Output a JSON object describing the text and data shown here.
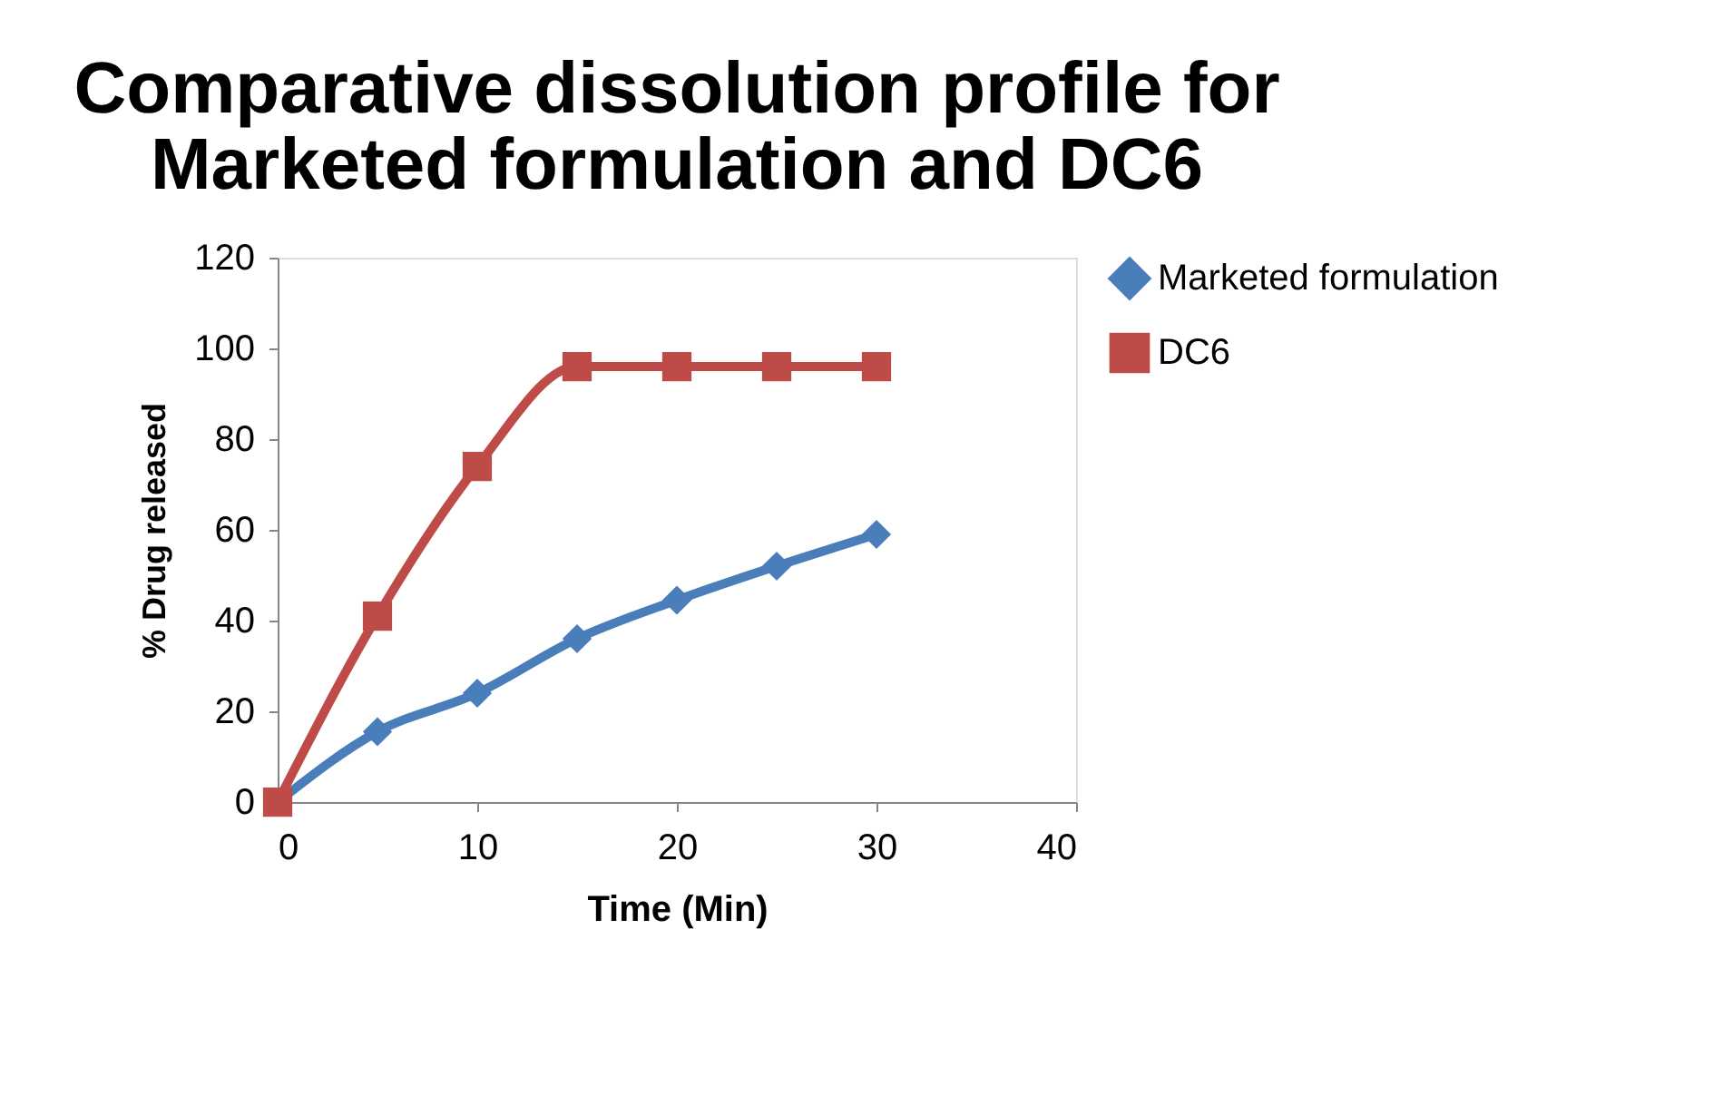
{
  "chart_data": {
    "type": "line",
    "title": [
      "Comparative dissolution profile for",
      "Marketed formulation and DC6"
    ],
    "xlabel": "Time (Min)",
    "ylabel": "% Drug released",
    "x": [
      0,
      5,
      10,
      15,
      20,
      25,
      30
    ],
    "series": [
      {
        "name": "Marketed formulation",
        "color": "#4a7ebb",
        "marker": "diamond",
        "values": [
          0,
          15.5,
          24,
          36,
          44.5,
          52,
          59
        ]
      },
      {
        "name": "DC6",
        "color": "#be4b48",
        "marker": "square",
        "values": [
          0,
          41,
          74,
          96,
          96,
          96,
          96
        ]
      }
    ],
    "xlim": [
      0,
      40
    ],
    "xticks": [
      0,
      10,
      20,
      30,
      40
    ],
    "ylim": [
      0,
      120
    ],
    "yticks": [
      0,
      20,
      40,
      60,
      80,
      100,
      120
    ],
    "grid": false,
    "legend": "right"
  }
}
